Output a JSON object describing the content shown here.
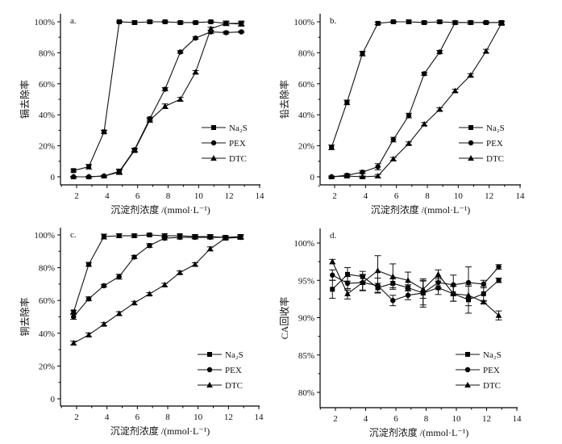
{
  "chart_data": [
    {
      "type": "line",
      "panel_label": "a.",
      "xlabel": "沉淀剂浓度 /(mmol·L⁻¹)",
      "ylabel": "镉去除率",
      "xlim": [
        1,
        14
      ],
      "ylim": [
        -5,
        105
      ],
      "xticks": [
        2,
        4,
        6,
        8,
        10,
        12,
        14
      ],
      "yticks": [
        0,
        20,
        40,
        60,
        80,
        100
      ],
      "ytick_labels": [
        "0",
        "20%",
        "40%",
        "60%",
        "80%",
        "100%"
      ],
      "grid": false,
      "legend_placement": "center-right",
      "x": [
        1.8,
        2.8,
        3.8,
        4.8,
        5.8,
        6.8,
        7.8,
        8.8,
        9.8,
        10.8,
        11.8,
        12.8
      ],
      "series": [
        {
          "name": "Na₂S",
          "marker": "square",
          "values": [
            4,
            6.5,
            29,
            100,
            99.5,
            100,
            100,
            99.5,
            99.5,
            100,
            99,
            99
          ],
          "error": [
            0.8,
            1.5,
            1,
            0.5,
            1,
            0.8,
            0.5,
            0.8,
            0.6,
            0.5,
            1.5,
            1.5
          ]
        },
        {
          "name": "PEX",
          "marker": "circle",
          "values": [
            0,
            0,
            0.5,
            3.5,
            17.5,
            37.5,
            56.5,
            80.5,
            89.5,
            93.5,
            93,
            93.5
          ],
          "error": [
            0.3,
            0.3,
            0.5,
            1.5,
            1,
            1,
            1,
            0.8,
            0.8,
            1,
            0.8,
            0.6
          ]
        },
        {
          "name": "DTC",
          "marker": "triangle",
          "values": [
            0,
            0,
            0.5,
            3,
            17,
            36.5,
            45.5,
            50,
            67.5,
            95.5,
            99,
            98.5
          ],
          "error": [
            0.3,
            0.3,
            0.5,
            1.5,
            1.2,
            1.2,
            1.5,
            1.2,
            1,
            1,
            1,
            1.2
          ]
        }
      ]
    },
    {
      "type": "line",
      "panel_label": "b.",
      "xlabel": "沉淀剂浓度 /(mmol·L⁻¹)",
      "ylabel": "铅去除率",
      "xlim": [
        1,
        14
      ],
      "ylim": [
        -5,
        105
      ],
      "xticks": [
        2,
        4,
        6,
        8,
        10,
        12,
        14
      ],
      "yticks": [
        0,
        20,
        40,
        60,
        80,
        100
      ],
      "ytick_labels": [
        "0",
        "20%",
        "40%",
        "60%",
        "80%",
        "100%"
      ],
      "grid": false,
      "legend_placement": "center-right",
      "x": [
        1.8,
        2.8,
        3.8,
        4.8,
        5.8,
        6.8,
        7.8,
        8.8,
        9.8,
        10.8,
        11.8,
        12.8
      ],
      "series": [
        {
          "name": "Na₂S",
          "marker": "square",
          "values": [
            19,
            48,
            79.5,
            99,
            100,
            100,
            99.5,
            100,
            99.5,
            99.5,
            99.5,
            99.5
          ],
          "error": [
            1.5,
            1.5,
            1.5,
            0.8,
            0.5,
            1,
            0.8,
            0.8,
            1,
            1,
            0.6,
            1
          ]
        },
        {
          "name": "PEX",
          "marker": "circle",
          "values": [
            0,
            1,
            3,
            6.5,
            24,
            39.5,
            66.5,
            80.5,
            99.5,
            99.5,
            99.5,
            99.5
          ],
          "error": [
            0.5,
            1,
            1,
            2,
            1.5,
            1.5,
            1,
            1,
            1,
            1,
            0.6,
            1
          ]
        },
        {
          "name": "DTC",
          "marker": "triangle",
          "values": [
            0,
            0.5,
            0,
            0.5,
            11.5,
            21.5,
            34,
            43.5,
            55.5,
            65.5,
            81,
            99
          ],
          "error": [
            0.5,
            0.5,
            0.5,
            1,
            1,
            1,
            1,
            1,
            1,
            1,
            1.2,
            1
          ]
        }
      ]
    },
    {
      "type": "line",
      "panel_label": "c.",
      "xlabel": "沉淀剂浓度 /(mmol·L⁻¹)",
      "ylabel": "铜去除率",
      "xlim": [
        1,
        14
      ],
      "ylim": [
        -5,
        102
      ],
      "xticks": [
        2,
        4,
        6,
        8,
        10,
        12,
        14
      ],
      "yticks": [
        0,
        20,
        40,
        60,
        80,
        100
      ],
      "ytick_labels": [
        "0",
        "20%",
        "40%",
        "60%",
        "80%",
        "100%"
      ],
      "grid": false,
      "legend_placement": "bottom-right",
      "x": [
        1.8,
        2.8,
        3.8,
        4.8,
        5.8,
        6.8,
        7.8,
        8.8,
        9.8,
        10.8,
        11.8,
        12.8
      ],
      "series": [
        {
          "name": "Na₂S",
          "marker": "square",
          "values": [
            53,
            82,
            99,
            99.5,
            99.5,
            100,
            99.5,
            99.5,
            99,
            99,
            98.5,
            99
          ],
          "error": [
            1,
            1.2,
            1.5,
            1.2,
            1,
            0.6,
            1.2,
            1,
            1.2,
            1.2,
            1,
            1.2
          ]
        },
        {
          "name": "PEX",
          "marker": "circle",
          "values": [
            50,
            61,
            69,
            74.5,
            86.5,
            93.5,
            98,
            98.5,
            98.5,
            98.5,
            98.5,
            98.5
          ],
          "error": [
            1.5,
            1.2,
            0.8,
            1.5,
            1,
            1.2,
            1,
            1,
            1,
            1,
            1,
            1
          ]
        },
        {
          "name": "DTC",
          "marker": "triangle",
          "values": [
            34,
            39,
            45.5,
            52,
            58.5,
            64,
            69.5,
            77,
            82,
            91.5,
            98,
            98.5
          ],
          "error": [
            1.2,
            1.2,
            1,
            1.2,
            1,
            0.8,
            1,
            1,
            1,
            1.2,
            1,
            1
          ]
        }
      ]
    },
    {
      "type": "line",
      "panel_label": "d.",
      "xlabel": "沉淀剂浓度 /(mmol·L⁻¹)",
      "ylabel": "CA回收率",
      "xlim": [
        1,
        14
      ],
      "ylim": [
        77.8,
        102
      ],
      "xticks": [
        2,
        4,
        6,
        8,
        10,
        12,
        14
      ],
      "yticks": [
        80,
        85,
        90,
        95,
        100
      ],
      "ytick_labels": [
        "80%",
        "85%",
        "90%",
        "95%",
        "100%"
      ],
      "grid": false,
      "legend_placement": "bottom-right",
      "x": [
        1.8,
        2.8,
        3.8,
        4.8,
        5.8,
        6.8,
        7.8,
        8.8,
        9.8,
        10.8,
        11.8,
        12.8
      ],
      "series": [
        {
          "name": "Na₂S",
          "marker": "square",
          "values": [
            93.8,
            95.8,
            95.5,
            94.0,
            94.6,
            94.0,
            93.3,
            94.0,
            93.2,
            92.4,
            93.2,
            95.0
          ],
          "error": [
            1.2,
            0.9,
            0.7,
            0.6,
            0.6,
            0.4,
            1.9,
            0.9,
            1.0,
            1.8,
            1.0,
            0.3
          ]
        },
        {
          "name": "PEX",
          "marker": "circle",
          "values": [
            95.7,
            94.6,
            94.7,
            94.3,
            92.3,
            93.0,
            93.3,
            94.7,
            94.4,
            94.7,
            94.5,
            96.8
          ],
          "error": [
            0.7,
            0.9,
            1.0,
            1.0,
            0.7,
            0.6,
            1.6,
            0.7,
            1.3,
            2.1,
            0.5,
            0.3
          ]
        },
        {
          "name": "DTC",
          "marker": "triangle",
          "values": [
            97.5,
            93.2,
            94.7,
            96.3,
            95.5,
            95.0,
            93.8,
            95.8,
            93.2,
            93.0,
            92.1,
            90.3
          ],
          "error": [
            0.3,
            0.7,
            1.1,
            2.0,
            1.7,
            1.1,
            1.2,
            0.6,
            1.0,
            1.4,
            0.2,
            0.6
          ]
        }
      ]
    }
  ]
}
